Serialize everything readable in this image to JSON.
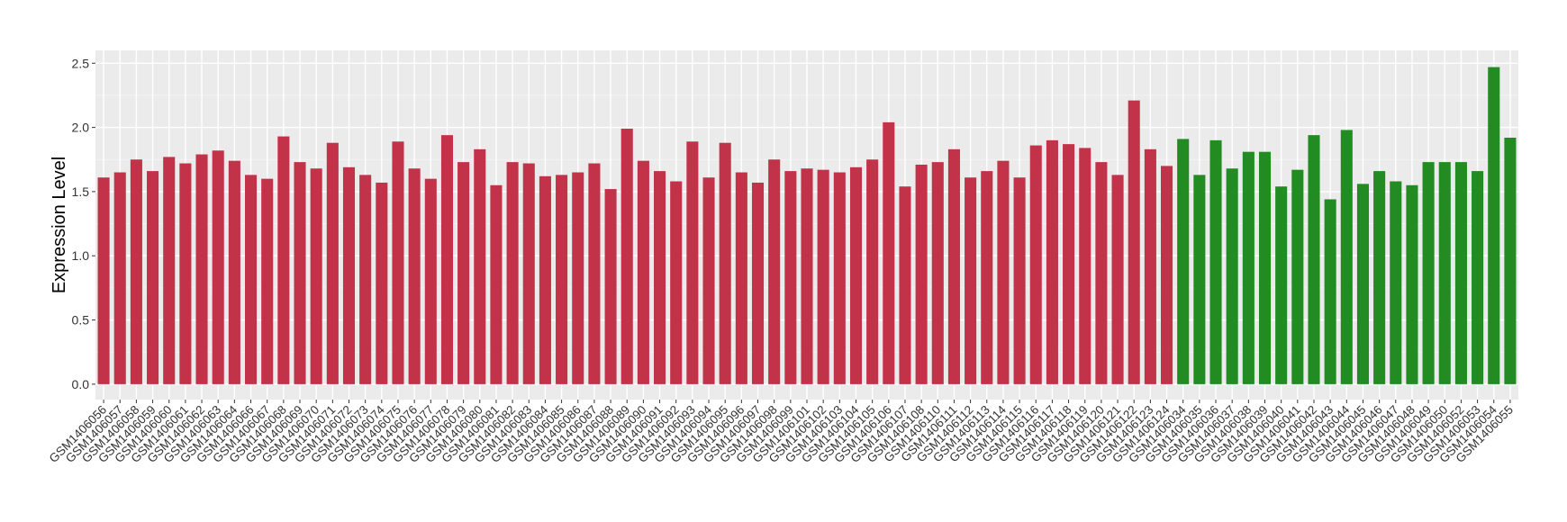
{
  "chart_data": {
    "type": "bar",
    "y_label": "Expression Level",
    "categories": [
      "GSM1406056",
      "GSM1406057",
      "GSM1406058",
      "GSM1406059",
      "GSM1406060",
      "GSM1406061",
      "GSM1406062",
      "GSM1406063",
      "GSM1406064",
      "GSM1406066",
      "GSM1406067",
      "GSM1406068",
      "GSM1406069",
      "GSM1406070",
      "GSM1406071",
      "GSM1406072",
      "GSM1406073",
      "GSM1406074",
      "GSM1406075",
      "GSM1406076",
      "GSM1406077",
      "GSM1406078",
      "GSM1406079",
      "GSM1406080",
      "GSM1406081",
      "GSM1406082",
      "GSM1406083",
      "GSM1406084",
      "GSM1406085",
      "GSM1406086",
      "GSM1406087",
      "GSM1406088",
      "GSM1406089",
      "GSM1406090",
      "GSM1406091",
      "GSM1406092",
      "GSM1406093",
      "GSM1406094",
      "GSM1406095",
      "GSM1406096",
      "GSM1406097",
      "GSM1406098",
      "GSM1406099",
      "GSM1406101",
      "GSM1406102",
      "GSM1406103",
      "GSM1406104",
      "GSM1406105",
      "GSM1406106",
      "GSM1406107",
      "GSM1406108",
      "GSM1406110",
      "GSM1406111",
      "GSM1406112",
      "GSM1406113",
      "GSM1406114",
      "GSM1406115",
      "GSM1406116",
      "GSM1406117",
      "GSM1406118",
      "GSM1406119",
      "GSM1406120",
      "GSM1406121",
      "GSM1406122",
      "GSM1406123",
      "GSM1406124",
      "GSM1406034",
      "GSM1406035",
      "GSM1406036",
      "GSM1406037",
      "GSM1406038",
      "GSM1406039",
      "GSM1406040",
      "GSM1406041",
      "GSM1406042",
      "GSM1406043",
      "GSM1406044",
      "GSM1406045",
      "GSM1406046",
      "GSM1406047",
      "GSM1406048",
      "GSM1406049",
      "GSM1406050",
      "GSM1406052",
      "GSM1406053",
      "GSM1406054",
      "GSM1406055"
    ],
    "values": [
      1.61,
      1.65,
      1.75,
      1.66,
      1.77,
      1.72,
      1.79,
      1.82,
      1.74,
      1.63,
      1.6,
      1.93,
      1.73,
      1.68,
      1.88,
      1.69,
      1.63,
      1.57,
      1.89,
      1.68,
      1.6,
      1.94,
      1.73,
      1.83,
      1.55,
      1.73,
      1.72,
      1.62,
      1.63,
      1.65,
      1.72,
      1.52,
      1.99,
      1.74,
      1.66,
      1.58,
      1.89,
      1.61,
      1.88,
      1.65,
      1.57,
      1.75,
      1.66,
      1.68,
      1.67,
      1.65,
      1.69,
      1.75,
      2.04,
      1.54,
      1.71,
      1.73,
      1.83,
      1.61,
      1.66,
      1.74,
      1.61,
      1.86,
      1.9,
      1.87,
      1.84,
      1.73,
      1.63,
      2.21,
      1.83,
      1.7,
      1.91,
      1.63,
      1.9,
      1.68,
      1.81,
      1.81,
      1.54,
      1.67,
      1.94,
      1.44,
      1.98,
      1.56,
      1.66,
      1.58,
      1.55,
      1.73,
      1.73,
      1.73,
      1.66,
      2.47,
      1.92
    ],
    "colors": [
      "#c2334a",
      "#c2334a",
      "#c2334a",
      "#c2334a",
      "#c2334a",
      "#c2334a",
      "#c2334a",
      "#c2334a",
      "#c2334a",
      "#c2334a",
      "#c2334a",
      "#c2334a",
      "#c2334a",
      "#c2334a",
      "#c2334a",
      "#c2334a",
      "#c2334a",
      "#c2334a",
      "#c2334a",
      "#c2334a",
      "#c2334a",
      "#c2334a",
      "#c2334a",
      "#c2334a",
      "#c2334a",
      "#c2334a",
      "#c2334a",
      "#c2334a",
      "#c2334a",
      "#c2334a",
      "#c2334a",
      "#c2334a",
      "#c2334a",
      "#c2334a",
      "#c2334a",
      "#c2334a",
      "#c2334a",
      "#c2334a",
      "#c2334a",
      "#c2334a",
      "#c2334a",
      "#c2334a",
      "#c2334a",
      "#c2334a",
      "#c2334a",
      "#c2334a",
      "#c2334a",
      "#c2334a",
      "#c2334a",
      "#c2334a",
      "#c2334a",
      "#c2334a",
      "#c2334a",
      "#c2334a",
      "#c2334a",
      "#c2334a",
      "#c2334a",
      "#c2334a",
      "#c2334a",
      "#c2334a",
      "#c2334a",
      "#c2334a",
      "#c2334a",
      "#c2334a",
      "#c2334a",
      "#c2334a",
      "#228b22",
      "#228b22",
      "#228b22",
      "#228b22",
      "#228b22",
      "#228b22",
      "#228b22",
      "#228b22",
      "#228b22",
      "#228b22",
      "#228b22",
      "#228b22",
      "#228b22",
      "#228b22",
      "#228b22",
      "#228b22",
      "#228b22",
      "#228b22",
      "#228b22",
      "#228b22",
      "#228b22"
    ],
    "ylim": [
      -0.12,
      2.6
    ],
    "yticks": [
      {
        "value": 0,
        "label": "0.0"
      },
      0.5,
      {
        "value": 1,
        "label": "1.0"
      },
      1.5,
      {
        "value": 2,
        "label": "2.0"
      },
      2.5
    ],
    "grid": true
  }
}
